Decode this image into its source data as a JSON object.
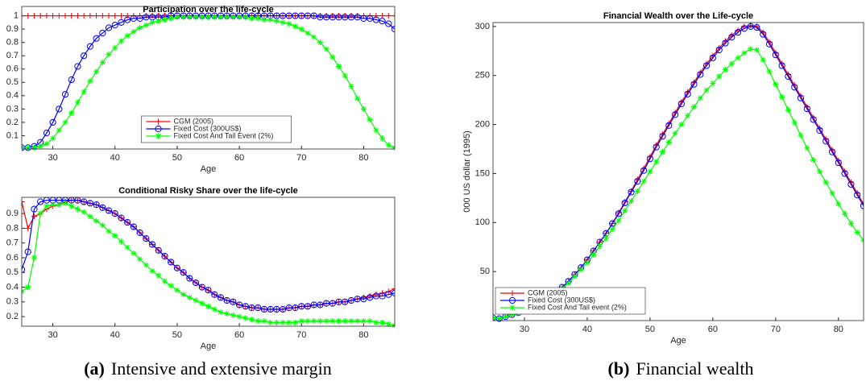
{
  "chart_data": [
    {
      "type": "line",
      "title": "Participation over the life-cycle",
      "xlabel": "Age",
      "x": [
        25,
        26,
        27,
        28,
        29,
        30,
        31,
        32,
        33,
        34,
        35,
        36,
        37,
        38,
        39,
        40,
        41,
        42,
        43,
        44,
        45,
        46,
        47,
        48,
        49,
        50,
        51,
        52,
        53,
        54,
        55,
        56,
        57,
        58,
        59,
        60,
        61,
        62,
        63,
        64,
        65,
        66,
        67,
        68,
        69,
        70,
        71,
        72,
        73,
        74,
        75,
        76,
        77,
        78,
        79,
        80,
        81,
        82,
        83,
        84,
        85
      ],
      "xlim": [
        25,
        85
      ],
      "xticks": [
        30,
        40,
        50,
        60,
        70,
        80
      ],
      "ylim": [
        0,
        1.07
      ],
      "yticks": [
        0.1,
        0.2,
        0.3,
        0.4,
        0.5,
        0.6,
        0.7,
        0.8,
        0.9,
        1
      ],
      "legend": "lower center",
      "series": [
        {
          "name": "CGM (2005)",
          "color": "#ff0000",
          "marker": "plus",
          "values": [
            1,
            1,
            1,
            1,
            1,
            1,
            1,
            1,
            1,
            1,
            1,
            1,
            1,
            1,
            1,
            1,
            1,
            1,
            1,
            1,
            1,
            1,
            1,
            1,
            1,
            1,
            1,
            1,
            1,
            1,
            1,
            1,
            1,
            1,
            1,
            1,
            1,
            1,
            1,
            1,
            1,
            1,
            1,
            1,
            1,
            1,
            1,
            1,
            1,
            1,
            1,
            1,
            1,
            1,
            1,
            1,
            1,
            1,
            1,
            1,
            1
          ]
        },
        {
          "name": "Fixed Cost (300US$)",
          "color": "#0000ff",
          "marker": "circle",
          "values": [
            0.01,
            0.01,
            0.02,
            0.05,
            0.12,
            0.2,
            0.3,
            0.41,
            0.52,
            0.62,
            0.7,
            0.77,
            0.83,
            0.87,
            0.91,
            0.93,
            0.95,
            0.97,
            0.98,
            0.98,
            0.99,
            0.99,
            0.99,
            0.99,
            1,
            1,
            1,
            1,
            1,
            1,
            1,
            1,
            1,
            1,
            1,
            1,
            1,
            1,
            1,
            1,
            1,
            1,
            1,
            1,
            1,
            1,
            1,
            1,
            0.99,
            0.99,
            0.99,
            0.99,
            0.99,
            0.99,
            0.99,
            0.98,
            0.98,
            0.97,
            0.96,
            0.94,
            0.9
          ]
        },
        {
          "name": "Fixed Cost And Tail Event (2%)",
          "color": "#00ff00",
          "marker": "star",
          "values": [
            0.01,
            0.01,
            0.01,
            0.02,
            0.04,
            0.08,
            0.14,
            0.2,
            0.27,
            0.35,
            0.43,
            0.51,
            0.58,
            0.65,
            0.71,
            0.76,
            0.81,
            0.85,
            0.88,
            0.91,
            0.93,
            0.95,
            0.96,
            0.97,
            0.98,
            0.99,
            0.99,
            0.99,
            0.99,
            0.99,
            0.99,
            0.99,
            0.99,
            0.99,
            0.99,
            0.99,
            0.99,
            0.98,
            0.98,
            0.97,
            0.97,
            0.96,
            0.95,
            0.94,
            0.92,
            0.9,
            0.87,
            0.84,
            0.8,
            0.75,
            0.69,
            0.62,
            0.55,
            0.47,
            0.38,
            0.3,
            0.22,
            0.14,
            0.08,
            0.03,
            0.01
          ]
        }
      ]
    },
    {
      "type": "line",
      "title": "Conditional Risky Share over the life-cycle",
      "xlabel": "Age",
      "x": [
        25,
        26,
        27,
        28,
        29,
        30,
        31,
        32,
        33,
        34,
        35,
        36,
        37,
        38,
        39,
        40,
        41,
        42,
        43,
        44,
        45,
        46,
        47,
        48,
        49,
        50,
        51,
        52,
        53,
        54,
        55,
        56,
        57,
        58,
        59,
        60,
        61,
        62,
        63,
        64,
        65,
        66,
        67,
        68,
        69,
        70,
        71,
        72,
        73,
        74,
        75,
        76,
        77,
        78,
        79,
        80,
        81,
        82,
        83,
        84,
        85
      ],
      "xlim": [
        25,
        85
      ],
      "xticks": [
        30,
        40,
        50,
        60,
        70,
        80
      ],
      "ylim": [
        0.135,
        1.01
      ],
      "yticks": [
        0.2,
        0.3,
        0.4,
        0.5,
        0.6,
        0.7,
        0.8,
        0.9
      ],
      "series": [
        {
          "color": "#ff0000",
          "marker": "plus",
          "values": [
            0.98,
            0.8,
            0.88,
            0.9,
            0.93,
            0.95,
            0.96,
            0.98,
            0.99,
            0.99,
            0.98,
            0.97,
            0.96,
            0.94,
            0.92,
            0.9,
            0.87,
            0.84,
            0.81,
            0.77,
            0.73,
            0.69,
            0.65,
            0.61,
            0.57,
            0.53,
            0.5,
            0.46,
            0.43,
            0.4,
            0.38,
            0.35,
            0.33,
            0.31,
            0.3,
            0.28,
            0.27,
            0.26,
            0.26,
            0.25,
            0.25,
            0.25,
            0.25,
            0.26,
            0.26,
            0.27,
            0.27,
            0.28,
            0.28,
            0.29,
            0.29,
            0.3,
            0.3,
            0.31,
            0.32,
            0.33,
            0.34,
            0.35,
            0.36,
            0.37,
            0.39
          ]
        },
        {
          "color": "#0000ff",
          "marker": "circle",
          "values": [
            0.52,
            0.64,
            0.93,
            0.98,
            0.99,
            0.99,
            0.99,
            0.99,
            0.99,
            0.99,
            0.98,
            0.97,
            0.96,
            0.94,
            0.92,
            0.9,
            0.87,
            0.84,
            0.81,
            0.77,
            0.73,
            0.69,
            0.65,
            0.61,
            0.57,
            0.53,
            0.5,
            0.46,
            0.43,
            0.4,
            0.38,
            0.35,
            0.33,
            0.31,
            0.3,
            0.28,
            0.27,
            0.26,
            0.26,
            0.25,
            0.25,
            0.25,
            0.25,
            0.26,
            0.26,
            0.27,
            0.27,
            0.28,
            0.28,
            0.29,
            0.29,
            0.3,
            0.3,
            0.31,
            0.32,
            0.32,
            0.33,
            0.34,
            0.34,
            0.35,
            0.36
          ]
        },
        {
          "color": "#00ff00",
          "marker": "star",
          "values": [
            0.37,
            0.4,
            0.6,
            0.9,
            0.95,
            0.96,
            0.96,
            0.97,
            0.95,
            0.93,
            0.91,
            0.88,
            0.85,
            0.82,
            0.78,
            0.75,
            0.71,
            0.67,
            0.63,
            0.59,
            0.55,
            0.51,
            0.48,
            0.44,
            0.41,
            0.38,
            0.35,
            0.33,
            0.31,
            0.29,
            0.27,
            0.25,
            0.23,
            0.22,
            0.21,
            0.2,
            0.19,
            0.18,
            0.17,
            0.17,
            0.16,
            0.16,
            0.16,
            0.16,
            0.16,
            0.17,
            0.17,
            0.17,
            0.17,
            0.17,
            0.17,
            0.17,
            0.17,
            0.17,
            0.17,
            0.17,
            0.17,
            0.16,
            0.16,
            0.15,
            0.14
          ]
        }
      ]
    },
    {
      "type": "line",
      "title": "Financial Wealth over the Life-cycle",
      "xlabel": "Age",
      "ylabel": "000 US dollar (1995)",
      "x": [
        25,
        26,
        27,
        28,
        29,
        30,
        31,
        32,
        33,
        34,
        35,
        36,
        37,
        38,
        39,
        40,
        41,
        42,
        43,
        44,
        45,
        46,
        47,
        48,
        49,
        50,
        51,
        52,
        53,
        54,
        55,
        56,
        57,
        58,
        59,
        60,
        61,
        62,
        63,
        64,
        65,
        66,
        67,
        68,
        69,
        70,
        71,
        72,
        73,
        74,
        75,
        76,
        77,
        78,
        79,
        80,
        81,
        82,
        83,
        84
      ],
      "xlim": [
        25,
        84
      ],
      "xticks": [
        30,
        40,
        50,
        60,
        70,
        80
      ],
      "ylim": [
        0,
        304
      ],
      "yticks": [
        50,
        100,
        150,
        200,
        250,
        300
      ],
      "legend": "lower left",
      "series": [
        {
          "name": "CGM (2005)",
          "color": "#ff0000",
          "marker": "plus",
          "values": [
            3,
            2,
            4,
            6,
            8,
            10,
            13,
            16,
            20,
            24,
            29,
            34,
            40,
            47,
            54,
            62,
            71,
            80,
            89,
            99,
            110,
            121,
            132,
            144,
            155,
            167,
            179,
            190,
            201,
            212,
            223,
            233,
            243,
            253,
            262,
            270,
            278,
            285,
            291,
            296,
            300,
            301,
            300,
            294,
            284,
            273,
            262,
            251,
            240,
            229,
            218,
            207,
            196,
            185,
            174,
            163,
            152,
            141,
            130,
            119
          ]
        },
        {
          "name": "Fixed Cost (300US$)",
          "color": "#0000ff",
          "marker": "circle",
          "values": [
            3,
            2,
            4,
            6,
            8,
            10,
            13,
            16,
            20,
            24,
            29,
            34,
            40,
            47,
            54,
            62,
            71,
            80,
            89,
            99,
            109,
            120,
            131,
            142,
            153,
            165,
            177,
            188,
            199,
            210,
            221,
            231,
            241,
            251,
            260,
            268,
            276,
            283,
            289,
            294,
            298,
            300,
            299,
            292,
            282,
            271,
            260,
            249,
            238,
            227,
            216,
            205,
            194,
            183,
            172,
            161,
            150,
            139,
            128,
            117
          ]
        },
        {
          "name": "Fixed Cost And Tail event (2%)",
          "color": "#00ff00",
          "marker": "star",
          "values": [
            3,
            2,
            4,
            6,
            8,
            10,
            12,
            15,
            19,
            23,
            28,
            33,
            38,
            45,
            52,
            59,
            67,
            76,
            84,
            93,
            102,
            112,
            122,
            132,
            142,
            152,
            162,
            172,
            182,
            191,
            200,
            209,
            218,
            227,
            235,
            242,
            249,
            256,
            262,
            268,
            273,
            277,
            276,
            266,
            254,
            241,
            228,
            215,
            202,
            189,
            176,
            164,
            152,
            141,
            130,
            119,
            109,
            99,
            90,
            82
          ]
        }
      ]
    }
  ],
  "captions": [
    {
      "label": "(a)",
      "text": "Intensive and extensive margin"
    },
    {
      "label": "(b)",
      "text": "Financial wealth"
    }
  ]
}
